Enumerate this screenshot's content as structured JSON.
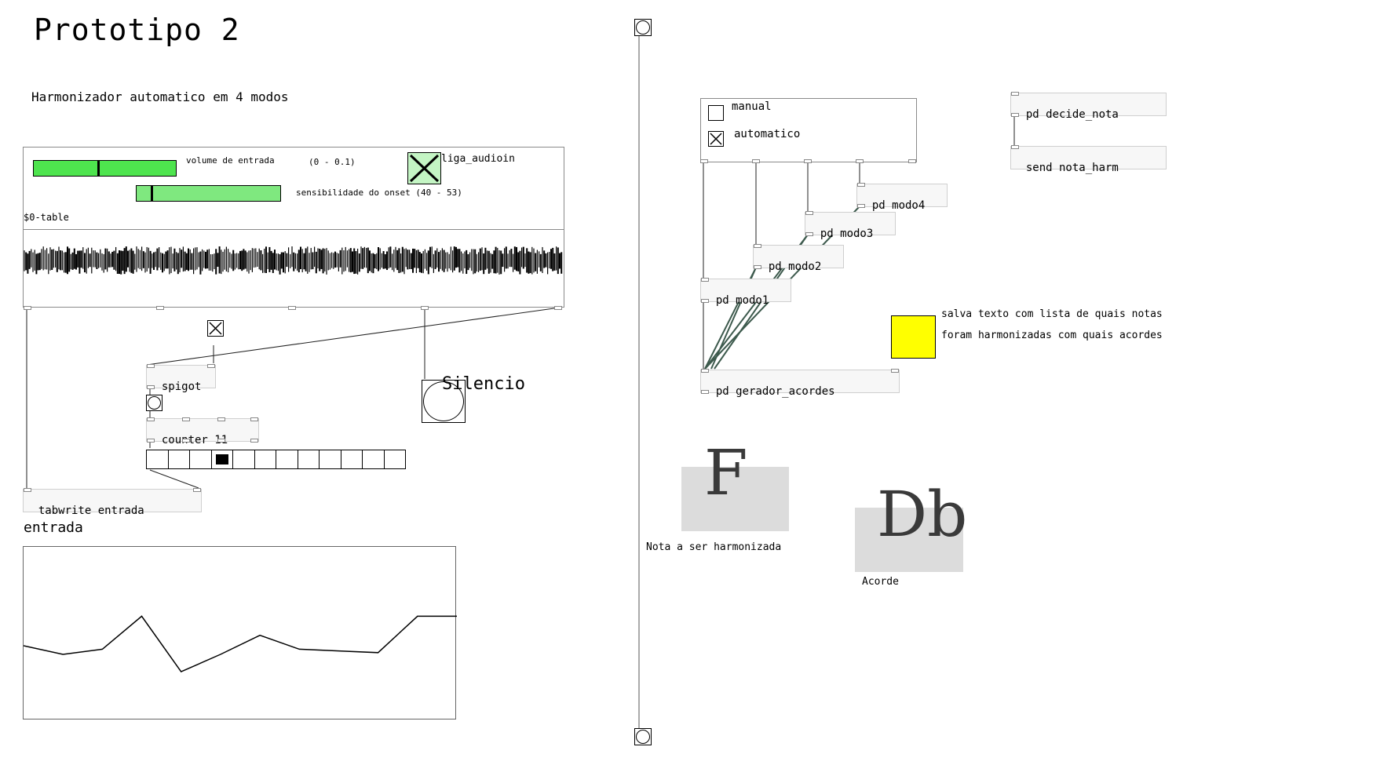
{
  "title": "Prototipo 2",
  "subtitle": "Harmonizador automatico em 4 modos",
  "gop": {
    "volume_label": "volume de entrada",
    "volume_range": "(0 - 0.1)",
    "volume_level": 0.45,
    "onset_label": "sensibilidade do onset (40 - 53)",
    "onset_level": 0.1,
    "audio_toggle_label": "liga_audioin",
    "audio_toggle_on": true,
    "table_label": "$0-table",
    "waveform_color": "#000000",
    "slider_color": "#4ee44e"
  },
  "objects": {
    "spigot": "spigot",
    "counter": "counter 11",
    "tabwrite": "tabwrite entrada",
    "silencio": "Silencio",
    "decide_nota": "pd decide_nota",
    "send_nota": "send nota_harm",
    "modo1": "pd modo1",
    "modo2": "pd modo2",
    "modo3": "pd modo3",
    "modo4": "pd modo4",
    "gerador": "pd gerador_acordes"
  },
  "mode_panel": {
    "manual": "manual",
    "automatico": "automatico",
    "manual_on": false,
    "automatico_on": true
  },
  "radio": {
    "count": 12,
    "selected": 3
  },
  "array": {
    "name": "entrada",
    "values": [
      0.57,
      0.62,
      0.59,
      0.4,
      0.72,
      0.62,
      0.51,
      0.59,
      0.6,
      0.61,
      0.4,
      0.4
    ]
  },
  "save_comment": {
    "line1": "salva texto com lista de quais notas",
    "line2": "foram harmonizadas com quais acordes",
    "color": "#ffff00"
  },
  "note_display": {
    "value": "F",
    "caption": "Nota a ser harmonizada"
  },
  "chord_display": {
    "value": "Db",
    "caption": "Acorde"
  }
}
